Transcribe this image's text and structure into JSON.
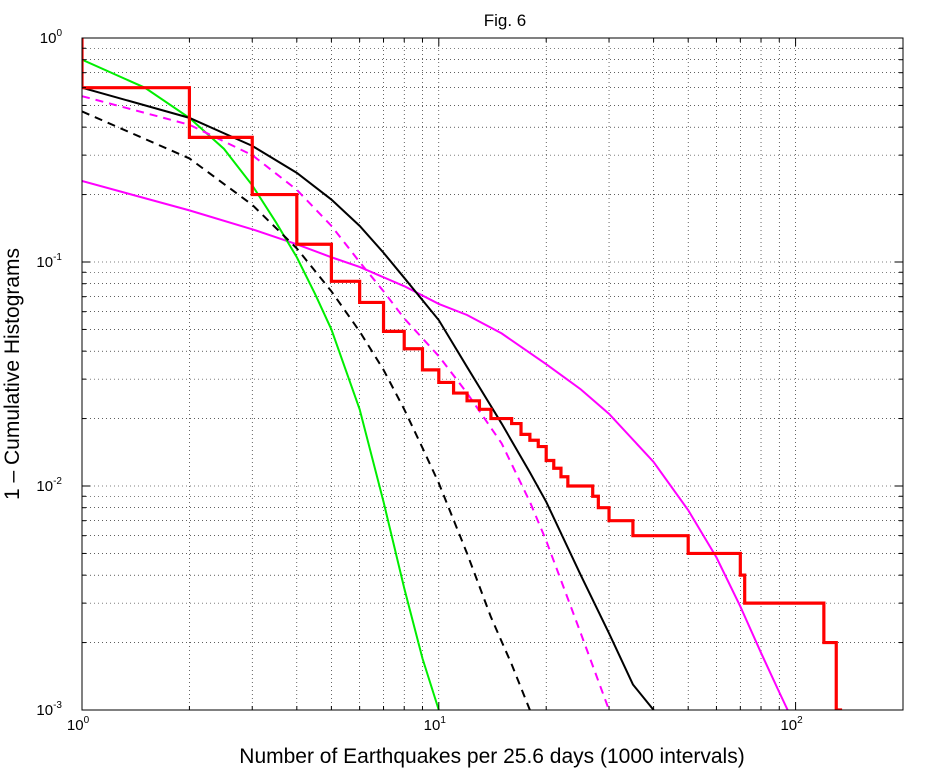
{
  "chart_data": {
    "type": "line",
    "title": "Fig. 6",
    "xlabel": "Number of Earthquakes per 25.6 days (1000 intervals)",
    "ylabel": "1 – Cumulative Histograms",
    "xscale": "log",
    "yscale": "log",
    "xlim": [
      1,
      200
    ],
    "ylim": [
      0.001,
      1
    ],
    "grid": true,
    "x_ticks": [
      {
        "base": "10",
        "exp": "0",
        "value": 1
      },
      {
        "base": "10",
        "exp": "1",
        "value": 10
      },
      {
        "base": "10",
        "exp": "2",
        "value": 100
      }
    ],
    "y_ticks": [
      {
        "base": "10",
        "exp": "-3",
        "value": 0.001
      },
      {
        "base": "10",
        "exp": "-2",
        "value": 0.01
      },
      {
        "base": "10",
        "exp": "-1",
        "value": 0.1
      },
      {
        "base": "10",
        "exp": "0",
        "value": 1
      }
    ],
    "series": [
      {
        "style": "step",
        "color": "#ff0000",
        "dash": "solid",
        "x": [
          1,
          2,
          3,
          4,
          5,
          6,
          7,
          8,
          9,
          10,
          11,
          12,
          13,
          14,
          16,
          17,
          18,
          19,
          20,
          21,
          22,
          23,
          25,
          27,
          28,
          30,
          35,
          40,
          50,
          70,
          72,
          120,
          130,
          135
        ],
        "y": [
          0.6,
          0.36,
          0.2,
          0.12,
          0.082,
          0.066,
          0.049,
          0.041,
          0.033,
          0.029,
          0.026,
          0.024,
          0.022,
          0.02,
          0.019,
          0.017,
          0.016,
          0.015,
          0.013,
          0.012,
          0.011,
          0.01,
          0.01,
          0.009,
          0.008,
          0.007,
          0.006,
          0.006,
          0.005,
          0.004,
          0.003,
          0.002,
          0.001,
          0.001
        ],
        "start_y": 1.0
      },
      {
        "style": "line",
        "color": "#000000",
        "dash": "solid",
        "x": [
          1,
          2,
          3,
          4,
          5,
          6,
          7,
          8,
          10,
          12,
          15,
          18,
          20,
          25,
          30,
          35,
          40
        ],
        "y": [
          0.6,
          0.44,
          0.33,
          0.25,
          0.19,
          0.145,
          0.11,
          0.085,
          0.055,
          0.034,
          0.019,
          0.0115,
          0.0085,
          0.004,
          0.0022,
          0.0013,
          0.001
        ]
      },
      {
        "style": "line",
        "color": "#000000",
        "dash": "dashed",
        "x": [
          1,
          2,
          3,
          4,
          5,
          6,
          7,
          8,
          9,
          10,
          12,
          14,
          16,
          18
        ],
        "y": [
          0.47,
          0.29,
          0.18,
          0.115,
          0.074,
          0.049,
          0.033,
          0.022,
          0.0148,
          0.0103,
          0.005,
          0.0026,
          0.0016,
          0.001
        ]
      },
      {
        "style": "line",
        "color": "#ff00ff",
        "dash": "dashed",
        "x": [
          1,
          2,
          3,
          4,
          5,
          6,
          7,
          8,
          10,
          12,
          15,
          18,
          20,
          25,
          30
        ],
        "y": [
          0.55,
          0.41,
          0.3,
          0.21,
          0.145,
          0.1,
          0.074,
          0.056,
          0.038,
          0.026,
          0.0155,
          0.0085,
          0.0057,
          0.0022,
          0.001
        ]
      },
      {
        "style": "line",
        "color": "#ff00ff",
        "dash": "solid",
        "x": [
          1,
          2,
          3,
          4,
          5,
          6,
          8,
          10,
          12,
          15,
          20,
          25,
          30,
          40,
          50,
          60,
          70,
          80,
          90,
          95
        ],
        "y": [
          0.23,
          0.17,
          0.14,
          0.12,
          0.105,
          0.095,
          0.078,
          0.065,
          0.058,
          0.048,
          0.035,
          0.027,
          0.021,
          0.0128,
          0.0078,
          0.0048,
          0.0029,
          0.0018,
          0.0012,
          0.001
        ]
      },
      {
        "style": "line",
        "color": "#00ee00",
        "dash": "solid",
        "x": [
          1,
          1.5,
          2,
          2.5,
          3,
          3.5,
          4,
          4.5,
          5,
          6,
          7,
          8,
          9,
          10
        ],
        "y": [
          0.8,
          0.6,
          0.44,
          0.32,
          0.22,
          0.15,
          0.105,
          0.072,
          0.05,
          0.022,
          0.0085,
          0.0035,
          0.0017,
          0.001
        ]
      }
    ]
  }
}
